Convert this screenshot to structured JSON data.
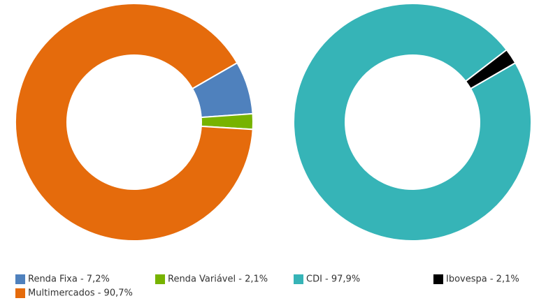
{
  "chart_data": [
    {
      "type": "donut",
      "categories": [
        "Renda Fixa - 7,2%",
        "Renda Variável - 2,1%",
        "Multimercados - 90,7%"
      ],
      "values": [
        7.2,
        2.1,
        90.7
      ],
      "colors": [
        "#4f81bd",
        "#77b300",
        "#e56b0c"
      ]
    },
    {
      "type": "donut",
      "categories": [
        "CDI - 97,9%",
        "Ibovespa - 2,1%"
      ],
      "values": [
        97.9,
        2.1
      ],
      "colors": [
        "#36b4b7",
        "#000000"
      ]
    }
  ]
}
